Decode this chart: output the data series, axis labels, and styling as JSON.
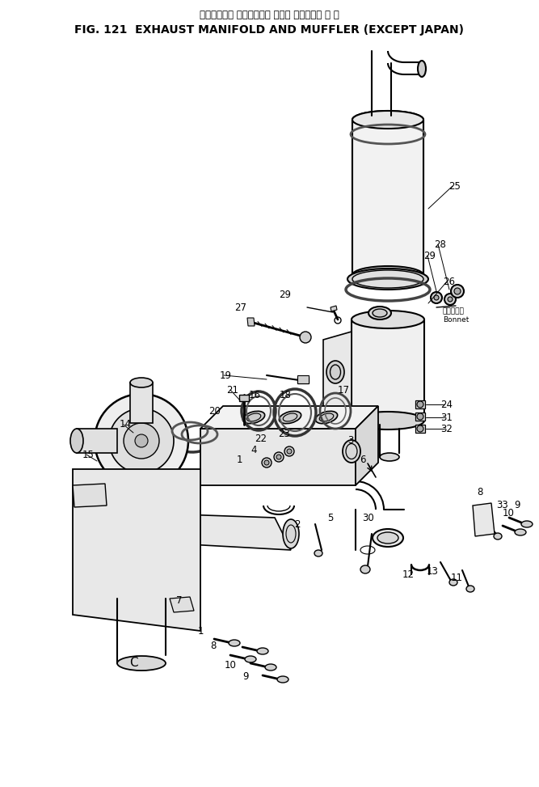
{
  "title_japanese": "エキゾースト マニホールド および マフラ　海 外 向",
  "title_english": "FIG. 121  EXHAUST MANIFOLD AND MUFFLER (EXCEPT JAPAN)",
  "bg_color": "#ffffff",
  "fig_width": 6.67,
  "fig_height": 9.73,
  "dpi": 100,
  "bonnet_label_ja": "ボンネット",
  "bonnet_label_en": "Bonnet"
}
